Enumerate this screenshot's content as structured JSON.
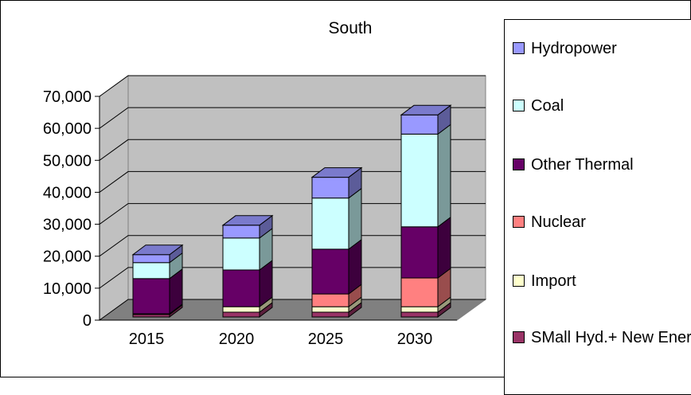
{
  "chart_data": {
    "type": "bar",
    "stacked": true,
    "three_d": true,
    "title": "South",
    "xlabel": "",
    "ylabel": "",
    "categories": [
      "2015",
      "2020",
      "2025",
      "2030"
    ],
    "ylim": [
      0,
      70000
    ],
    "yticks": [
      0,
      10000,
      20000,
      30000,
      40000,
      50000,
      60000,
      70000
    ],
    "ytick_labels": [
      "0",
      "10,000",
      "20,000",
      "30,000",
      "40,000",
      "50,000",
      "60,000",
      "70,000"
    ],
    "grid": true,
    "legend_position": "right",
    "series": [
      {
        "name": "SMall Hyd.+ New Energy",
        "color": "#993366",
        "values": [
          800,
          1500,
          1500,
          1500
        ]
      },
      {
        "name": "Import",
        "color": "#FFFFCC",
        "values": [
          200,
          1700,
          1700,
          1700
        ]
      },
      {
        "name": "Nuclear",
        "color": "#FF8080",
        "values": [
          0,
          0,
          4000,
          9000
        ]
      },
      {
        "name": "Other Thermal",
        "color": "#660066",
        "values": [
          11000,
          11500,
          14000,
          16000
        ]
      },
      {
        "name": "Coal",
        "color": "#CCFFFF",
        "values": [
          5000,
          10000,
          16000,
          29000
        ]
      },
      {
        "name": "Hydropower",
        "color": "#9999FF",
        "values": [
          2500,
          4000,
          6500,
          6000
        ]
      }
    ]
  },
  "colors": {
    "wall": "#C0C0C0",
    "floor": "#808080",
    "gridline": "#000000"
  }
}
